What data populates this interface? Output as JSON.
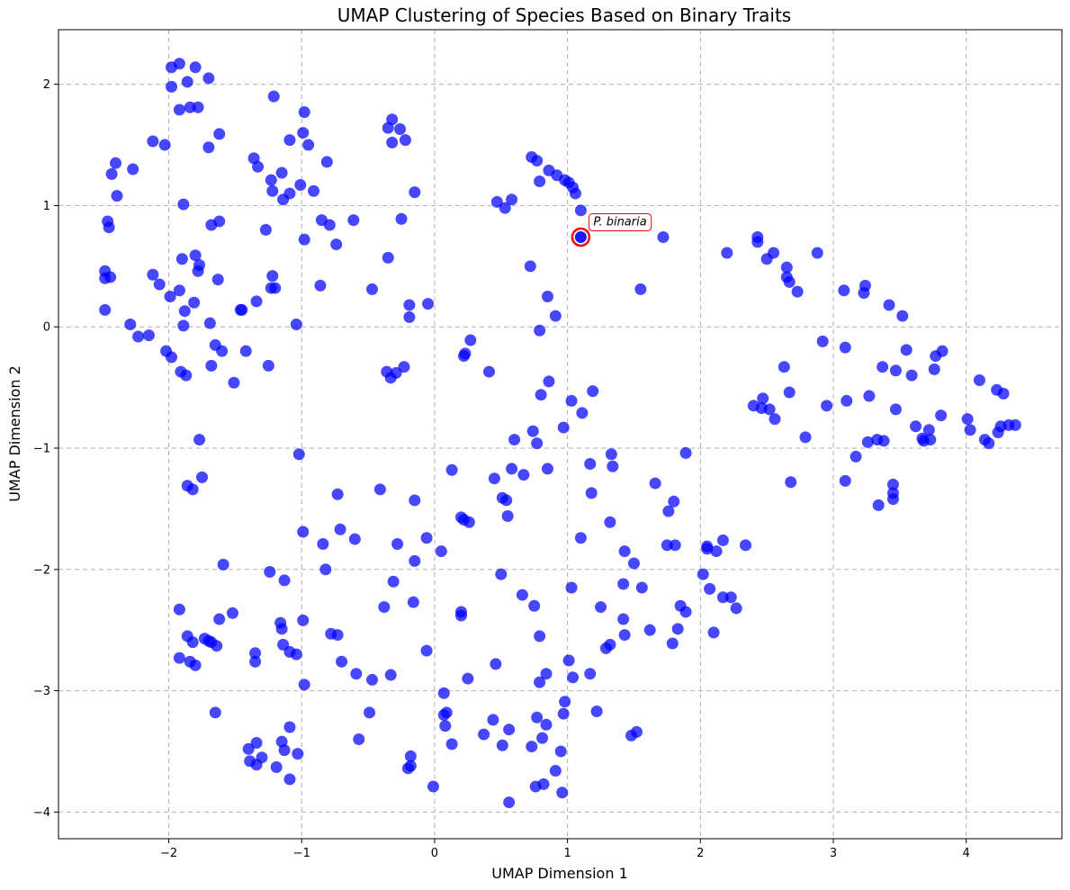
{
  "chart_data": {
    "type": "scatter",
    "title": "UMAP Clustering of Species Based on Binary Traits",
    "xlabel": "UMAP Dimension 1",
    "ylabel": "UMAP Dimension 2",
    "xlim": [
      -2.83,
      4.72
    ],
    "ylim": [
      -4.22,
      2.45
    ],
    "xticks": [
      -2,
      -1,
      0,
      1,
      2,
      3,
      4
    ],
    "yticks": [
      -4,
      -3,
      -2,
      -1,
      0,
      1,
      2
    ],
    "grid": true,
    "point_color": "#0000ff",
    "highlight_color": "#ff0000",
    "annotation": {
      "text": "P. binaria",
      "x": 1.1,
      "y": 0.74
    },
    "points": [
      [
        -1.92,
        2.17
      ],
      [
        -1.98,
        2.14
      ],
      [
        -1.8,
        2.14
      ],
      [
        -1.86,
        2.02
      ],
      [
        -1.98,
        1.98
      ],
      [
        -1.7,
        2.05
      ],
      [
        -1.84,
        1.81
      ],
      [
        -1.78,
        1.81
      ],
      [
        -1.92,
        1.79
      ],
      [
        -1.21,
        1.9
      ],
      [
        -0.98,
        1.77
      ],
      [
        -0.32,
        1.71
      ],
      [
        -0.35,
        1.64
      ],
      [
        -0.26,
        1.63
      ],
      [
        -0.32,
        1.52
      ],
      [
        -0.22,
        1.54
      ],
      [
        -0.99,
        1.6
      ],
      [
        -1.09,
        1.54
      ],
      [
        -0.95,
        1.5
      ],
      [
        -1.62,
        1.59
      ],
      [
        -1.7,
        1.48
      ],
      [
        -2.12,
        1.53
      ],
      [
        -2.03,
        1.5
      ],
      [
        -1.36,
        1.39
      ],
      [
        -1.33,
        1.32
      ],
      [
        -0.81,
        1.36
      ],
      [
        -2.4,
        1.35
      ],
      [
        -2.43,
        1.26
      ],
      [
        -2.27,
        1.3
      ],
      [
        -1.23,
        1.21
      ],
      [
        -1.15,
        1.27
      ],
      [
        -1.01,
        1.17
      ],
      [
        -1.09,
        1.1
      ],
      [
        -1.22,
        1.12
      ],
      [
        -1.14,
        1.05
      ],
      [
        -0.91,
        1.12
      ],
      [
        -2.39,
        1.08
      ],
      [
        -1.89,
        1.01
      ],
      [
        -0.15,
        1.11
      ],
      [
        -1.62,
        0.87
      ],
      [
        -1.68,
        0.84
      ],
      [
        -2.46,
        0.87
      ],
      [
        -2.45,
        0.82
      ],
      [
        -0.85,
        0.88
      ],
      [
        -0.79,
        0.84
      ],
      [
        -0.61,
        0.88
      ],
      [
        -0.25,
        0.89
      ],
      [
        -1.27,
        0.8
      ],
      [
        -0.98,
        0.72
      ],
      [
        -0.74,
        0.68
      ],
      [
        -1.9,
        0.56
      ],
      [
        -1.8,
        0.59
      ],
      [
        -1.77,
        0.51
      ],
      [
        -1.78,
        0.46
      ],
      [
        -2.48,
        0.46
      ],
      [
        -2.48,
        0.4
      ],
      [
        -2.44,
        0.41
      ],
      [
        -2.12,
        0.43
      ],
      [
        -1.63,
        0.39
      ],
      [
        -1.22,
        0.42
      ],
      [
        -0.35,
        0.57
      ],
      [
        -2.07,
        0.35
      ],
      [
        -1.92,
        0.3
      ],
      [
        -1.23,
        0.32
      ],
      [
        -1.2,
        0.32
      ],
      [
        -0.86,
        0.34
      ],
      [
        -0.47,
        0.31
      ],
      [
        -1.99,
        0.25
      ],
      [
        -1.81,
        0.2
      ],
      [
        -1.34,
        0.21
      ],
      [
        -0.19,
        0.18
      ],
      [
        -0.05,
        0.19
      ],
      [
        -2.48,
        0.14
      ],
      [
        -1.88,
        0.13
      ],
      [
        -1.45,
        0.14
      ],
      [
        -1.46,
        0.14
      ],
      [
        -1.69,
        0.03
      ],
      [
        -1.89,
        0.01
      ],
      [
        -2.29,
        0.02
      ],
      [
        -1.04,
        0.02
      ],
      [
        -0.19,
        0.08
      ],
      [
        -2.23,
        -0.08
      ],
      [
        -2.15,
        -0.07
      ],
      [
        -1.65,
        -0.15
      ],
      [
        -1.6,
        -0.2
      ],
      [
        -1.42,
        -0.2
      ],
      [
        -2.02,
        -0.2
      ],
      [
        -1.98,
        -0.25
      ],
      [
        -1.25,
        -0.32
      ],
      [
        -1.68,
        -0.32
      ],
      [
        -1.91,
        -0.37
      ],
      [
        -1.87,
        -0.4
      ],
      [
        -0.36,
        -0.37
      ],
      [
        -0.33,
        -0.42
      ],
      [
        -0.29,
        -0.38
      ],
      [
        -0.23,
        -0.33
      ],
      [
        -1.51,
        -0.46
      ],
      [
        -1.77,
        -0.93
      ],
      [
        -1.75,
        -1.24
      ],
      [
        -1.86,
        -1.31
      ],
      [
        -1.82,
        -1.34
      ],
      [
        -1.02,
        -1.05
      ],
      [
        0.27,
        -0.11
      ],
      [
        0.23,
        -0.22
      ],
      [
        0.22,
        -0.24
      ],
      [
        0.41,
        -0.37
      ],
      [
        0.73,
        1.4
      ],
      [
        0.77,
        1.37
      ],
      [
        0.86,
        1.29
      ],
      [
        0.92,
        1.25
      ],
      [
        0.79,
        1.2
      ],
      [
        0.98,
        1.21
      ],
      [
        1.01,
        1.19
      ],
      [
        1.04,
        1.15
      ],
      [
        1.06,
        1.1
      ],
      [
        0.47,
        1.03
      ],
      [
        0.58,
        1.05
      ],
      [
        0.53,
        0.98
      ],
      [
        1.1,
        0.96
      ],
      [
        1.72,
        0.74
      ],
      [
        0.72,
        0.5
      ],
      [
        1.55,
        0.31
      ],
      [
        0.85,
        0.25
      ],
      [
        0.91,
        0.09
      ],
      [
        0.79,
        -0.03
      ],
      [
        0.86,
        -0.45
      ],
      [
        0.8,
        -0.56
      ],
      [
        1.03,
        -0.61
      ],
      [
        1.19,
        -0.53
      ],
      [
        1.11,
        -0.71
      ],
      [
        0.74,
        -0.86
      ],
      [
        0.97,
        -0.83
      ],
      [
        0.6,
        -0.93
      ],
      [
        0.77,
        -0.96
      ],
      [
        1.33,
        -1.05
      ],
      [
        1.34,
        -1.15
      ],
      [
        1.89,
        -1.04
      ],
      [
        0.13,
        -1.18
      ],
      [
        0.58,
        -1.17
      ],
      [
        0.67,
        -1.22
      ],
      [
        0.85,
        -1.17
      ],
      [
        1.17,
        -1.13
      ],
      [
        0.45,
        -1.25
      ],
      [
        0.51,
        -1.41
      ],
      [
        0.54,
        -1.43
      ],
      [
        1.18,
        -1.37
      ],
      [
        1.66,
        -1.29
      ],
      [
        1.8,
        -1.44
      ],
      [
        1.76,
        -1.52
      ],
      [
        0.55,
        -1.56
      ],
      [
        0.2,
        -1.57
      ],
      [
        0.22,
        -1.59
      ],
      [
        0.26,
        -1.61
      ],
      [
        1.1,
        -1.74
      ],
      [
        1.32,
        -1.61
      ],
      [
        1.75,
        -1.8
      ],
      [
        1.81,
        -1.8
      ],
      [
        2.05,
        -1.81
      ],
      [
        2.05,
        -1.83
      ],
      [
        2.12,
        -1.85
      ],
      [
        2.17,
        -1.76
      ],
      [
        2.34,
        -1.8
      ],
      [
        1.43,
        -1.85
      ],
      [
        1.5,
        -1.95
      ],
      [
        2.02,
        -2.04
      ],
      [
        0.5,
        -2.04
      ],
      [
        1.42,
        -2.12
      ],
      [
        1.56,
        -2.15
      ],
      [
        1.03,
        -2.15
      ],
      [
        2.07,
        -2.16
      ],
      [
        2.17,
        -2.23
      ],
      [
        2.23,
        -2.23
      ],
      [
        2.27,
        -2.32
      ],
      [
        1.85,
        -2.3
      ],
      [
        1.89,
        -2.35
      ],
      [
        0.66,
        -2.21
      ],
      [
        0.75,
        -2.3
      ],
      [
        1.25,
        -2.31
      ],
      [
        1.42,
        -2.41
      ],
      [
        1.43,
        -2.54
      ],
      [
        1.62,
        -2.5
      ],
      [
        1.83,
        -2.49
      ],
      [
        1.79,
        -2.61
      ],
      [
        2.1,
        -2.52
      ],
      [
        0.79,
        -2.55
      ],
      [
        1.32,
        -2.62
      ],
      [
        1.29,
        -2.65
      ],
      [
        1.01,
        -2.75
      ],
      [
        0.84,
        -2.86
      ],
      [
        0.79,
        -2.93
      ],
      [
        1.17,
        -2.86
      ],
      [
        1.04,
        -2.89
      ],
      [
        0.98,
        -3.09
      ],
      [
        0.97,
        -3.19
      ],
      [
        0.77,
        -3.22
      ],
      [
        0.84,
        -3.28
      ],
      [
        0.73,
        -3.46
      ],
      [
        0.81,
        -3.39
      ],
      [
        0.95,
        -3.5
      ],
      [
        1.22,
        -3.17
      ],
      [
        1.48,
        -3.37
      ],
      [
        1.52,
        -3.34
      ],
      [
        0.91,
        -3.66
      ],
      [
        0.82,
        -3.77
      ],
      [
        0.76,
        -3.79
      ],
      [
        0.96,
        -3.84
      ],
      [
        0.56,
        -3.92
      ],
      [
        0.56,
        -3.32
      ],
      [
        0.51,
        -3.45
      ],
      [
        0.44,
        -3.24
      ],
      [
        0.37,
        -3.36
      ],
      [
        0.46,
        -2.78
      ],
      [
        0.25,
        -2.9
      ],
      [
        0.2,
        -2.35
      ],
      [
        0.2,
        -2.38
      ],
      [
        0.07,
        -3.02
      ],
      [
        0.07,
        -3.2
      ],
      [
        0.09,
        -3.18
      ],
      [
        0.08,
        -3.29
      ],
      [
        0.13,
        -3.44
      ],
      [
        -0.01,
        -3.79
      ],
      [
        -0.18,
        -3.54
      ],
      [
        -0.18,
        -3.62
      ],
      [
        -0.2,
        -3.64
      ],
      [
        0.05,
        -1.85
      ],
      [
        -0.06,
        -1.74
      ],
      [
        -0.15,
        -1.93
      ],
      [
        -0.28,
        -1.79
      ],
      [
        -0.15,
        -1.43
      ],
      [
        -0.41,
        -1.34
      ],
      [
        -0.31,
        -2.1
      ],
      [
        -0.16,
        -2.27
      ],
      [
        -0.06,
        -2.67
      ],
      [
        -0.38,
        -2.31
      ],
      [
        -0.33,
        -2.87
      ],
      [
        -0.47,
        -2.91
      ],
      [
        -0.59,
        -2.86
      ],
      [
        -0.7,
        -2.76
      ],
      [
        -0.49,
        -3.18
      ],
      [
        -0.57,
        -3.4
      ],
      [
        -0.73,
        -1.38
      ],
      [
        -0.71,
        -1.67
      ],
      [
        -0.6,
        -1.75
      ],
      [
        -0.84,
        -1.79
      ],
      [
        -0.99,
        -1.69
      ],
      [
        -0.82,
        -2.0
      ],
      [
        -0.78,
        -2.53
      ],
      [
        -0.73,
        -2.54
      ],
      [
        -0.99,
        -2.42
      ],
      [
        -0.98,
        -2.95
      ],
      [
        -1.04,
        -2.7
      ],
      [
        -1.09,
        -2.68
      ],
      [
        -1.14,
        -2.62
      ],
      [
        -1.16,
        -2.44
      ],
      [
        -1.15,
        -2.49
      ],
      [
        -1.13,
        -2.09
      ],
      [
        -1.24,
        -2.02
      ],
      [
        -1.35,
        -2.69
      ],
      [
        -1.35,
        -2.76
      ],
      [
        -1.4,
        -3.48
      ],
      [
        -1.34,
        -3.43
      ],
      [
        -1.3,
        -3.55
      ],
      [
        -1.39,
        -3.58
      ],
      [
        -1.34,
        -3.61
      ],
      [
        -1.19,
        -3.63
      ],
      [
        -1.15,
        -3.42
      ],
      [
        -1.13,
        -3.49
      ],
      [
        -1.09,
        -3.3
      ],
      [
        -1.03,
        -3.52
      ],
      [
        -1.09,
        -3.73
      ],
      [
        -1.59,
        -1.96
      ],
      [
        -1.62,
        -2.41
      ],
      [
        -1.52,
        -2.36
      ],
      [
        -1.64,
        -2.63
      ],
      [
        -1.68,
        -2.6
      ],
      [
        -1.7,
        -2.59
      ],
      [
        -1.73,
        -2.57
      ],
      [
        -1.82,
        -2.6
      ],
      [
        -1.86,
        -2.55
      ],
      [
        -1.92,
        -2.33
      ],
      [
        -1.92,
        -2.73
      ],
      [
        -1.84,
        -2.76
      ],
      [
        -1.8,
        -2.79
      ],
      [
        -1.65,
        -3.18
      ],
      [
        2.2,
        0.61
      ],
      [
        2.43,
        0.7
      ],
      [
        2.43,
        0.74
      ],
      [
        2.5,
        0.56
      ],
      [
        2.55,
        0.61
      ],
      [
        2.65,
        0.49
      ],
      [
        2.65,
        0.41
      ],
      [
        2.67,
        0.37
      ],
      [
        2.73,
        0.29
      ],
      [
        2.88,
        0.61
      ],
      [
        3.08,
        0.3
      ],
      [
        3.23,
        0.28
      ],
      [
        3.24,
        0.34
      ],
      [
        3.42,
        0.18
      ],
      [
        3.52,
        0.09
      ],
      [
        2.92,
        -0.12
      ],
      [
        3.09,
        -0.17
      ],
      [
        3.55,
        -0.19
      ],
      [
        3.82,
        -0.2
      ],
      [
        3.77,
        -0.24
      ],
      [
        2.63,
        -0.33
      ],
      [
        3.37,
        -0.33
      ],
      [
        3.47,
        -0.36
      ],
      [
        3.59,
        -0.4
      ],
      [
        3.76,
        -0.35
      ],
      [
        2.67,
        -0.54
      ],
      [
        2.47,
        -0.59
      ],
      [
        2.4,
        -0.65
      ],
      [
        2.46,
        -0.67
      ],
      [
        2.52,
        -0.68
      ],
      [
        2.56,
        -0.76
      ],
      [
        2.95,
        -0.65
      ],
      [
        3.1,
        -0.61
      ],
      [
        3.27,
        -0.57
      ],
      [
        3.47,
        -0.68
      ],
      [
        2.79,
        -0.91
      ],
      [
        3.26,
        -0.95
      ],
      [
        3.33,
        -0.93
      ],
      [
        3.38,
        -0.94
      ],
      [
        3.62,
        -0.82
      ],
      [
        3.67,
        -0.92
      ],
      [
        3.68,
        -0.94
      ],
      [
        3.73,
        -0.93
      ],
      [
        3.72,
        -0.85
      ],
      [
        3.81,
        -0.73
      ],
      [
        4.01,
        -0.76
      ],
      [
        4.03,
        -0.85
      ],
      [
        4.1,
        -0.44
      ],
      [
        4.23,
        -0.52
      ],
      [
        4.28,
        -0.55
      ],
      [
        4.14,
        -0.93
      ],
      [
        4.17,
        -0.96
      ],
      [
        4.24,
        -0.87
      ],
      [
        4.26,
        -0.82
      ],
      [
        4.32,
        -0.81
      ],
      [
        4.37,
        -0.81
      ],
      [
        3.17,
        -1.07
      ],
      [
        3.09,
        -1.27
      ],
      [
        2.68,
        -1.28
      ],
      [
        3.45,
        -1.3
      ],
      [
        3.45,
        -1.37
      ],
      [
        3.45,
        -1.42
      ],
      [
        3.34,
        -1.47
      ]
    ]
  }
}
